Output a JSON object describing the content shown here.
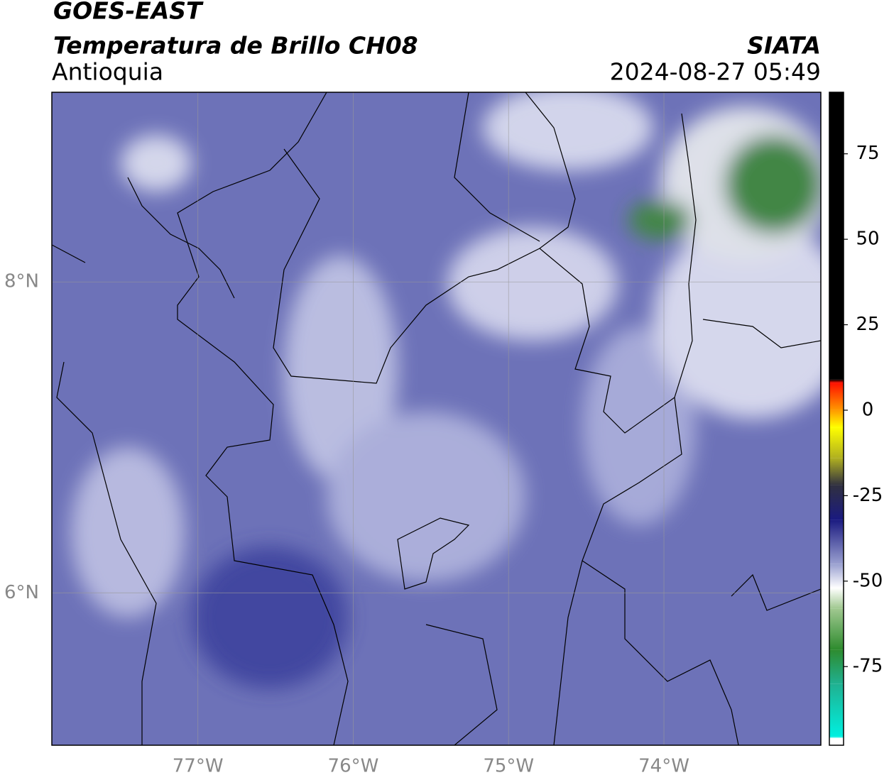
{
  "header": {
    "title": "GOES-EAST",
    "subtitle": "Temperatura de Brillo CH08",
    "region": "Antioquia",
    "source": "SIATA",
    "datetime": "2024-08-27 05:49"
  },
  "map": {
    "xlim": [
      -77.94,
      -72.99
    ],
    "ylim": [
      5.02,
      9.22
    ],
    "xticks": [
      {
        "value": -77,
        "label": "77°W"
      },
      {
        "value": -76,
        "label": "76°W"
      },
      {
        "value": -75,
        "label": "75°W"
      },
      {
        "value": -74,
        "label": "74°W"
      }
    ],
    "yticks": [
      {
        "value": 6,
        "label": "6°N"
      },
      {
        "value": 8,
        "label": "8°N"
      }
    ],
    "grid": true,
    "background": "#6d72b8"
  },
  "colorbar": {
    "lim": [
      -98,
      93
    ],
    "ticks": [
      -75,
      -50,
      -25,
      0,
      25,
      50,
      75
    ],
    "stops": [
      {
        "value": -98,
        "color": "#ffffff"
      },
      {
        "value": -96,
        "color": "#ffffff"
      },
      {
        "value": -95.5,
        "color": "#00f0e0"
      },
      {
        "value": -80,
        "color": "#20b090"
      },
      {
        "value": -70,
        "color": "#2e8b2e"
      },
      {
        "value": -58,
        "color": "#a0c890"
      },
      {
        "value": -52,
        "color": "#ffffff"
      },
      {
        "value": -45,
        "color": "#9aa0d0"
      },
      {
        "value": -32,
        "color": "#1a1a80"
      },
      {
        "value": -22,
        "color": "#303040"
      },
      {
        "value": -14,
        "color": "#b0b020"
      },
      {
        "value": -5,
        "color": "#ffff00"
      },
      {
        "value": 0,
        "color": "#ff9900"
      },
      {
        "value": 8,
        "color": "#ff1000"
      },
      {
        "value": 9,
        "color": "#000000"
      },
      {
        "value": 93,
        "color": "#000000"
      }
    ]
  }
}
